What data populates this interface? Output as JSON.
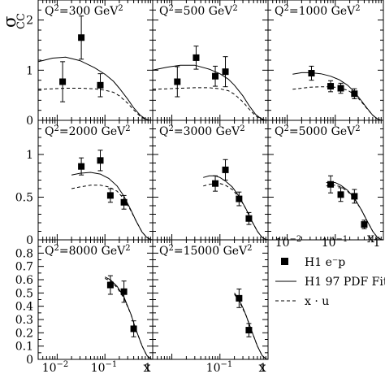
{
  "figure": {
    "y_axis_label": "σ",
    "y_axis_label_sub": "CC",
    "x_axis_label": "x",
    "legend": [
      {
        "label": "H1 e⁻p",
        "symbol": "marker"
      },
      {
        "label": "H1 97 PDF Fit",
        "symbol": "solid"
      },
      {
        "label": "x · u",
        "symbol": "dashed"
      }
    ],
    "x_axis_ticklabels": {
      "panel_5": [
        "10⁻¹",
        "1"
      ],
      "panel_6": [
        "10⁻¹",
        "1"
      ],
      "panel_7": [
        "10⁻²",
        "10⁻¹",
        "1"
      ]
    }
  },
  "chart_data": [
    {
      "type": "scatter",
      "title": "Q²=300 GeV²",
      "xscale": "log",
      "xlim": [
        0.004,
        1
      ],
      "ylim": [
        0,
        2.4
      ],
      "ytick_labels": [
        "0",
        "1",
        "2"
      ],
      "ytick_values": [
        0,
        1,
        2
      ],
      "series": [
        {
          "name": "H1 e⁻p",
          "x": [
            0.013,
            0.032,
            0.08
          ],
          "y": [
            0.77,
            1.65,
            0.7
          ],
          "err": [
            0.4,
            0.43,
            0.23
          ]
        },
        {
          "name": "H1 97 PDF Fit",
          "x": [
            0.004,
            0.008,
            0.015,
            0.03,
            0.06,
            0.1,
            0.15,
            0.2,
            0.3,
            0.4,
            0.55,
            0.7,
            0.85,
            1
          ],
          "y": [
            1.17,
            1.24,
            1.26,
            1.19,
            1.05,
            0.92,
            0.78,
            0.64,
            0.42,
            0.25,
            0.1,
            0.03,
            0.005,
            0
          ]
        },
        {
          "name": "x · u",
          "x": [
            0.004,
            0.008,
            0.015,
            0.03,
            0.06,
            0.1,
            0.15,
            0.2,
            0.3,
            0.4,
            0.55,
            0.7,
            0.85,
            1
          ],
          "y": [
            0.62,
            0.63,
            0.64,
            0.64,
            0.63,
            0.6,
            0.56,
            0.49,
            0.34,
            0.21,
            0.08,
            0.02,
            0.004,
            0
          ]
        }
      ]
    },
    {
      "type": "scatter",
      "title": "Q²=500 GeV²",
      "xscale": "log",
      "xlim": [
        0.004,
        1
      ],
      "ylim": [
        0,
        2.4
      ],
      "series": [
        {
          "name": "H1 e⁻p",
          "x": [
            0.013,
            0.032,
            0.08,
            0.13
          ],
          "y": [
            0.77,
            1.25,
            0.88,
            0.97
          ],
          "err": [
            0.3,
            0.23,
            0.2,
            0.3
          ]
        },
        {
          "name": "H1 97 PDF Fit",
          "x": [
            0.004,
            0.008,
            0.015,
            0.03,
            0.06,
            0.1,
            0.15,
            0.2,
            0.3,
            0.4,
            0.55,
            0.7,
            0.85,
            1
          ],
          "y": [
            1.0,
            1.06,
            1.1,
            1.1,
            1.02,
            0.93,
            0.82,
            0.7,
            0.49,
            0.3,
            0.12,
            0.04,
            0.006,
            0
          ]
        },
        {
          "name": "x · u",
          "x": [
            0.004,
            0.008,
            0.015,
            0.03,
            0.06,
            0.1,
            0.15,
            0.2,
            0.3,
            0.4,
            0.55,
            0.7,
            0.85,
            1
          ],
          "y": [
            0.62,
            0.63,
            0.64,
            0.65,
            0.65,
            0.63,
            0.59,
            0.52,
            0.37,
            0.23,
            0.09,
            0.03,
            0.004,
            0
          ]
        }
      ]
    },
    {
      "type": "scatter",
      "title": "Q²=1000 GeV²",
      "xscale": "log",
      "xlim": [
        0.004,
        1
      ],
      "ylim": [
        0,
        2.4
      ],
      "series": [
        {
          "name": "H1 e⁻p",
          "x": [
            0.032,
            0.08,
            0.13,
            0.25
          ],
          "y": [
            0.94,
            0.68,
            0.64,
            0.53
          ],
          "err": [
            0.14,
            0.11,
            0.1,
            0.1
          ]
        },
        {
          "name": "H1 97 PDF Fit",
          "x": [
            0.013,
            0.02,
            0.03,
            0.05,
            0.08,
            0.12,
            0.18,
            0.25,
            0.35,
            0.45,
            0.6,
            0.75,
            0.9,
            1
          ],
          "y": [
            0.92,
            0.95,
            0.95,
            0.93,
            0.88,
            0.81,
            0.7,
            0.57,
            0.39,
            0.25,
            0.1,
            0.03,
            0.004,
            0
          ]
        },
        {
          "name": "x · u",
          "x": [
            0.013,
            0.02,
            0.03,
            0.05,
            0.08,
            0.12,
            0.18,
            0.25,
            0.35,
            0.45,
            0.6,
            0.75,
            0.9,
            1
          ],
          "y": [
            0.62,
            0.64,
            0.66,
            0.67,
            0.67,
            0.65,
            0.6,
            0.52,
            0.37,
            0.24,
            0.1,
            0.03,
            0.004,
            0
          ]
        }
      ]
    },
    {
      "type": "scatter",
      "title": "Q²=2000 GeV²",
      "xscale": "log",
      "xlim": [
        0.004,
        1
      ],
      "ylim": [
        0,
        1.4
      ],
      "ytick_labels": [
        "0",
        "0.5",
        "1"
      ],
      "ytick_values": [
        0,
        0.5,
        1
      ],
      "series": [
        {
          "name": "H1 e⁻p",
          "x": [
            0.032,
            0.08,
            0.13,
            0.25
          ],
          "y": [
            0.86,
            0.93,
            0.52,
            0.44
          ],
          "err": [
            0.1,
            0.12,
            0.08,
            0.08
          ]
        },
        {
          "name": "H1 97 PDF Fit",
          "x": [
            0.02,
            0.03,
            0.05,
            0.08,
            0.12,
            0.18,
            0.25,
            0.35,
            0.45,
            0.6,
            0.75,
            0.9,
            1
          ],
          "y": [
            0.76,
            0.78,
            0.79,
            0.77,
            0.72,
            0.63,
            0.51,
            0.35,
            0.22,
            0.09,
            0.03,
            0.004,
            0
          ]
        },
        {
          "name": "x · u",
          "x": [
            0.02,
            0.03,
            0.05,
            0.08,
            0.12,
            0.18,
            0.25,
            0.35,
            0.45,
            0.6,
            0.75,
            0.9,
            1
          ],
          "y": [
            0.6,
            0.62,
            0.64,
            0.64,
            0.62,
            0.57,
            0.48,
            0.34,
            0.22,
            0.09,
            0.03,
            0.004,
            0
          ]
        }
      ]
    },
    {
      "type": "scatter",
      "title": "Q²=3000 GeV²",
      "xscale": "log",
      "xlim": [
        0.004,
        1
      ],
      "ylim": [
        0,
        1.4
      ],
      "series": [
        {
          "name": "H1 e⁻p",
          "x": [
            0.08,
            0.13,
            0.25,
            0.4
          ],
          "y": [
            0.66,
            0.82,
            0.48,
            0.25
          ],
          "err": [
            0.09,
            0.12,
            0.08,
            0.07
          ]
        },
        {
          "name": "H1 97 PDF Fit",
          "x": [
            0.045,
            0.06,
            0.08,
            0.1,
            0.13,
            0.18,
            0.25,
            0.35,
            0.45,
            0.6,
            0.75,
            0.9,
            1
          ],
          "y": [
            0.73,
            0.75,
            0.75,
            0.73,
            0.69,
            0.62,
            0.51,
            0.36,
            0.23,
            0.1,
            0.03,
            0.004,
            0
          ]
        },
        {
          "name": "x · u",
          "x": [
            0.045,
            0.06,
            0.08,
            0.1,
            0.13,
            0.18,
            0.25,
            0.35,
            0.45,
            0.6,
            0.75,
            0.9,
            1
          ],
          "y": [
            0.63,
            0.65,
            0.66,
            0.66,
            0.64,
            0.59,
            0.5,
            0.36,
            0.23,
            0.1,
            0.03,
            0.004,
            0
          ]
        }
      ]
    },
    {
      "type": "scatter",
      "title": "Q²=5000 GeV²",
      "xscale": "log",
      "xlim": [
        0.004,
        1
      ],
      "ylim": [
        0,
        1.4
      ],
      "series": [
        {
          "name": "H1 e⁻p",
          "x": [
            0.08,
            0.13,
            0.25,
            0.4
          ],
          "y": [
            0.65,
            0.53,
            0.51,
            0.18
          ],
          "err": [
            0.1,
            0.08,
            0.08,
            0.05
          ]
        },
        {
          "name": "H1 97 PDF Fit",
          "x": [
            0.065,
            0.08,
            0.1,
            0.13,
            0.18,
            0.25,
            0.35,
            0.45,
            0.6,
            0.75,
            0.9,
            1
          ],
          "y": [
            0.67,
            0.68,
            0.67,
            0.64,
            0.58,
            0.49,
            0.35,
            0.23,
            0.1,
            0.03,
            0.004,
            0
          ]
        },
        {
          "name": "x · u",
          "x": [
            0.065,
            0.08,
            0.1,
            0.13,
            0.18,
            0.25,
            0.35,
            0.45,
            0.6,
            0.75,
            0.9,
            1
          ],
          "y": [
            0.63,
            0.64,
            0.64,
            0.62,
            0.57,
            0.48,
            0.35,
            0.23,
            0.1,
            0.03,
            0.004,
            0
          ]
        }
      ]
    },
    {
      "type": "scatter",
      "title": "Q²=8000 GeV²",
      "xscale": "log",
      "xlim": [
        0.004,
        1
      ],
      "ylim": [
        0,
        0.9
      ],
      "ytick_labels": [
        "0",
        "0.1",
        "0.2",
        "0.3",
        "0.4",
        "0.5",
        "0.6",
        "0.7",
        "0.8"
      ],
      "ytick_values": [
        0,
        0.1,
        0.2,
        0.3,
        0.4,
        0.5,
        0.6,
        0.7,
        0.8
      ],
      "series": [
        {
          "name": "H1 e⁻p",
          "x": [
            0.13,
            0.25,
            0.4
          ],
          "y": [
            0.56,
            0.51,
            0.23
          ],
          "err": [
            0.07,
            0.08,
            0.06
          ]
        },
        {
          "name": "H1 97 PDF Fit",
          "x": [
            0.1,
            0.13,
            0.18,
            0.25,
            0.35,
            0.45,
            0.6,
            0.75,
            0.9,
            1
          ],
          "y": [
            0.62,
            0.6,
            0.55,
            0.47,
            0.34,
            0.22,
            0.1,
            0.03,
            0.004,
            0
          ]
        },
        {
          "name": "x · u",
          "x": [
            0.1,
            0.13,
            0.18,
            0.25,
            0.35,
            0.45,
            0.6,
            0.75,
            0.9,
            1
          ],
          "y": [
            0.61,
            0.59,
            0.54,
            0.46,
            0.34,
            0.22,
            0.1,
            0.03,
            0.004,
            0
          ]
        }
      ]
    },
    {
      "type": "scatter",
      "title": "Q²=15000 GeV²",
      "xscale": "log",
      "xlim": [
        0.004,
        1
      ],
      "ylim": [
        0,
        0.9
      ],
      "series": [
        {
          "name": "H1 e⁻p",
          "x": [
            0.25,
            0.4
          ],
          "y": [
            0.46,
            0.22
          ],
          "err": [
            0.07,
            0.05
          ]
        },
        {
          "name": "H1 97 PDF Fit",
          "x": [
            0.2,
            0.25,
            0.3,
            0.35,
            0.45,
            0.6,
            0.75,
            0.9,
            1
          ],
          "y": [
            0.5,
            0.45,
            0.39,
            0.33,
            0.22,
            0.1,
            0.03,
            0.004,
            0
          ]
        },
        {
          "name": "x · u",
          "x": [
            0.2,
            0.25,
            0.3,
            0.35,
            0.45,
            0.6,
            0.75,
            0.9,
            1
          ],
          "y": [
            0.49,
            0.44,
            0.38,
            0.33,
            0.22,
            0.1,
            0.03,
            0.004,
            0
          ]
        }
      ]
    }
  ]
}
